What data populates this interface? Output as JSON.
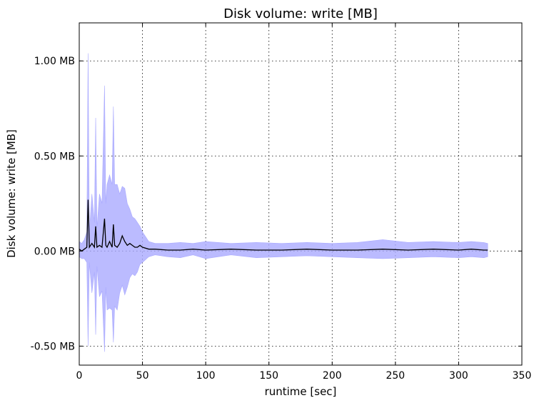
{
  "chart_data": {
    "type": "line",
    "title": "Disk volume: write [MB]",
    "xlabel": "runtime [sec]",
    "ylabel": "Disk volume: write [MB]",
    "xlim": [
      0,
      350
    ],
    "ylim": [
      -0.6,
      1.2
    ],
    "xticks": [
      0,
      50,
      100,
      150,
      200,
      250,
      300,
      350
    ],
    "xtick_labels": [
      "0",
      "50",
      "100",
      "150",
      "200",
      "250",
      "300",
      "350"
    ],
    "yticks": [
      -0.5,
      0.0,
      0.5,
      1.0
    ],
    "ytick_labels": [
      "-0.50 MB",
      "0.00 MB",
      "0.50 MB",
      "1.00 MB"
    ],
    "grid": true,
    "colors": {
      "line": "#000000",
      "band": "#aaaaff"
    },
    "series": [
      {
        "values_description": "mean",
        "x": [
          0,
          2,
          4,
          6,
          7,
          8,
          10,
          12,
          13,
          14,
          16,
          18,
          20,
          21,
          22,
          24,
          26,
          27,
          28,
          30,
          32,
          34,
          36,
          38,
          40,
          42,
          44,
          46,
          48,
          50,
          55,
          60,
          70,
          80,
          90,
          100,
          120,
          140,
          160,
          180,
          200,
          220,
          240,
          260,
          280,
          300,
          310,
          320,
          323
        ],
        "y": [
          0.01,
          0.0,
          0.01,
          0.02,
          0.27,
          0.02,
          0.04,
          0.02,
          0.13,
          0.02,
          0.03,
          0.02,
          0.17,
          0.03,
          0.02,
          0.05,
          0.02,
          0.14,
          0.03,
          0.02,
          0.04,
          0.08,
          0.05,
          0.03,
          0.04,
          0.03,
          0.02,
          0.02,
          0.03,
          0.02,
          0.01,
          0.01,
          0.005,
          0.005,
          0.01,
          0.005,
          0.01,
          0.005,
          0.005,
          0.01,
          0.005,
          0.005,
          0.01,
          0.005,
          0.01,
          0.005,
          0.01,
          0.005,
          0.005
        ]
      },
      {
        "values_description": "upper band",
        "x": [
          0,
          2,
          4,
          6,
          7,
          8,
          10,
          12,
          13,
          14,
          16,
          18,
          20,
          21,
          22,
          24,
          26,
          27,
          28,
          30,
          32,
          34,
          36,
          38,
          40,
          42,
          44,
          46,
          48,
          50,
          55,
          60,
          70,
          80,
          90,
          100,
          120,
          140,
          160,
          180,
          200,
          220,
          240,
          260,
          280,
          300,
          310,
          320,
          323
        ],
        "y": [
          0.05,
          0.04,
          0.06,
          0.1,
          1.04,
          0.1,
          0.3,
          0.15,
          0.7,
          0.12,
          0.3,
          0.25,
          0.87,
          0.25,
          0.35,
          0.4,
          0.35,
          0.76,
          0.35,
          0.35,
          0.3,
          0.34,
          0.33,
          0.25,
          0.22,
          0.18,
          0.17,
          0.15,
          0.13,
          0.1,
          0.05,
          0.04,
          0.04,
          0.045,
          0.04,
          0.05,
          0.04,
          0.045,
          0.04,
          0.045,
          0.04,
          0.045,
          0.06,
          0.045,
          0.05,
          0.045,
          0.05,
          0.045,
          0.04
        ]
      },
      {
        "values_description": "lower band",
        "x": [
          0,
          2,
          4,
          6,
          7,
          8,
          10,
          12,
          13,
          14,
          16,
          18,
          20,
          21,
          22,
          24,
          26,
          27,
          28,
          30,
          32,
          34,
          36,
          38,
          40,
          42,
          44,
          46,
          48,
          50,
          55,
          60,
          70,
          80,
          90,
          100,
          120,
          140,
          160,
          180,
          200,
          220,
          240,
          260,
          280,
          300,
          310,
          320,
          323
        ],
        "y": [
          -0.03,
          -0.04,
          -0.04,
          -0.06,
          -0.5,
          -0.06,
          -0.22,
          -0.11,
          -0.44,
          -0.08,
          -0.24,
          -0.21,
          -0.53,
          -0.19,
          -0.31,
          -0.3,
          -0.31,
          -0.48,
          -0.29,
          -0.31,
          -0.22,
          -0.18,
          -0.23,
          -0.19,
          -0.14,
          -0.12,
          -0.13,
          -0.11,
          -0.07,
          -0.06,
          -0.03,
          -0.02,
          -0.03,
          -0.035,
          -0.02,
          -0.04,
          -0.02,
          -0.035,
          -0.03,
          -0.025,
          -0.03,
          -0.035,
          -0.04,
          -0.035,
          -0.03,
          -0.035,
          -0.03,
          -0.035,
          -0.03
        ]
      }
    ]
  }
}
